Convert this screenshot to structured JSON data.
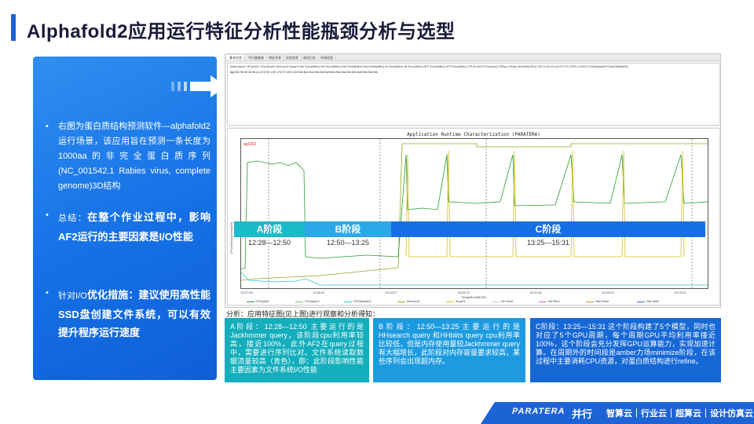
{
  "title": "Alphafold2应用运行特征分析性能瓶颈分析与选型",
  "left_panel": {
    "bullet1": "右图为蛋白质结构预测软件—alphafold2运行场景，该应用旨在预测一条长度为1000aa的非完全蛋白质序列(NC_001542.1 Rabies virus, complete genome)3D结构",
    "bullet2_prefix": "总结：",
    "bullet2_strong": "在整个作业过程中，影响AF2运行的主要因素是I/O性能",
    "bullet3_prefix": "针对I/O",
    "bullet3_strong": "优化措施：建议使用高性能SSD盘创建文件系统，可以有效提升程序运行速度"
  },
  "screen": {
    "tabs": [
      "基本信息",
      "平行度曲线",
      "特征共享",
      "历史信息",
      "调试日志",
      "环境信息"
    ],
    "table_header": "Node Name   CPU(all)%   CPU(Sys)%   Memory%   Swap%   Net Send(MB/s)   Net Recv(MB/s)   Disk Read(MB/s)   Disk Write(MB/s)   IB Send(MB/s)   IB Recv(MB/s)   NFS Send(MB/s)   NFS Recv(MB/s)   GPU%   MIC%   Power(W)   GRepo   GRepc   MemBW(GB/s)   VEC%   AVX%   AVX%   CPI   GIPS   L1C50%   C/NU(Byte/B)   F/Net(GB/Byte/B)",
    "table_row": "ag1001   95.90   28.06   41.23   0.00   1.50   178.72   0.00   0.00   N/A   N/A   N/A   N/A   N/A   N/A   N/A   N/A   N/A   N/A   N/A   N/A   N/A   N/A   N/A",
    "chart_title": "Application Runtime Characterization (PARATERA)",
    "y_axis_label": "CPU/Memory/Swap(%)",
    "series_label": "ag1001",
    "x_ticks": [
      "12:27:26",
      "12:56:01",
      "13:24:37",
      "13:53:13",
      "14:21:49",
      "14:50:25",
      "15:19:01"
    ],
    "x_axis_label": "Time(HH:MM:SS)",
    "y_ticks": [
      "100",
      "50",
      "0"
    ],
    "legend": [
      "CPU(all)%",
      "CPU(sys)%",
      "CPU(iowait)%",
      "Memory%",
      "Swap%",
      "Net Send",
      "Net Recv",
      "Disk Read",
      "Disk Write"
    ]
  },
  "phases": [
    {
      "label": "A阶段",
      "time": "12:28—12:50"
    },
    {
      "label": "B阶段",
      "time": "12:50—13:25"
    },
    {
      "label": "C阶段",
      "time": "13:25—15:31"
    }
  ],
  "analysis_label": "分析：应用特征图(见上图)进行观察和分析得知：",
  "boxes": {
    "a": "A阶段：12:28—12:50 主要运行的是Jackhmmer query，该阶段cpu利用率较高，接近100%。此外AF2在query过程中，需要进行序列比对。文件系统读取数据流量较高（青色），即：此阶段影响性能主要因素为文件系统I/O性能",
    "b": "B阶段：12:50—13:25主要运行的是HHsearch query 和HHblits query cpu利用率比较低，但是内存使用量较Jackhmmer query有大幅增长，此阶段对内存容量要求较高，某些序列会出现超内存。",
    "c": "C阶段：13:25—15:31 这个阶段构建了5个模型，同时也对应了5个GPU周期，每个周期GPU平均利用率接近100%，这个阶段会充分发挥GPU运算能力，实现加速计算。在周期外的时间段是amber力场minimize阶段，在该过程中主要消耗CPU资源，对蛋白质结构进行refine。"
  },
  "footer": {
    "logo": "PARATERA",
    "logo_cn": "并行",
    "slogan": "智算云｜行业云｜超算云｜设计仿真云"
  },
  "colors": {
    "brand_blue": "#1e63d6",
    "phase_a": "#1abbc8",
    "phase_b": "#2aa8e8",
    "phase_c": "#1570e6"
  }
}
